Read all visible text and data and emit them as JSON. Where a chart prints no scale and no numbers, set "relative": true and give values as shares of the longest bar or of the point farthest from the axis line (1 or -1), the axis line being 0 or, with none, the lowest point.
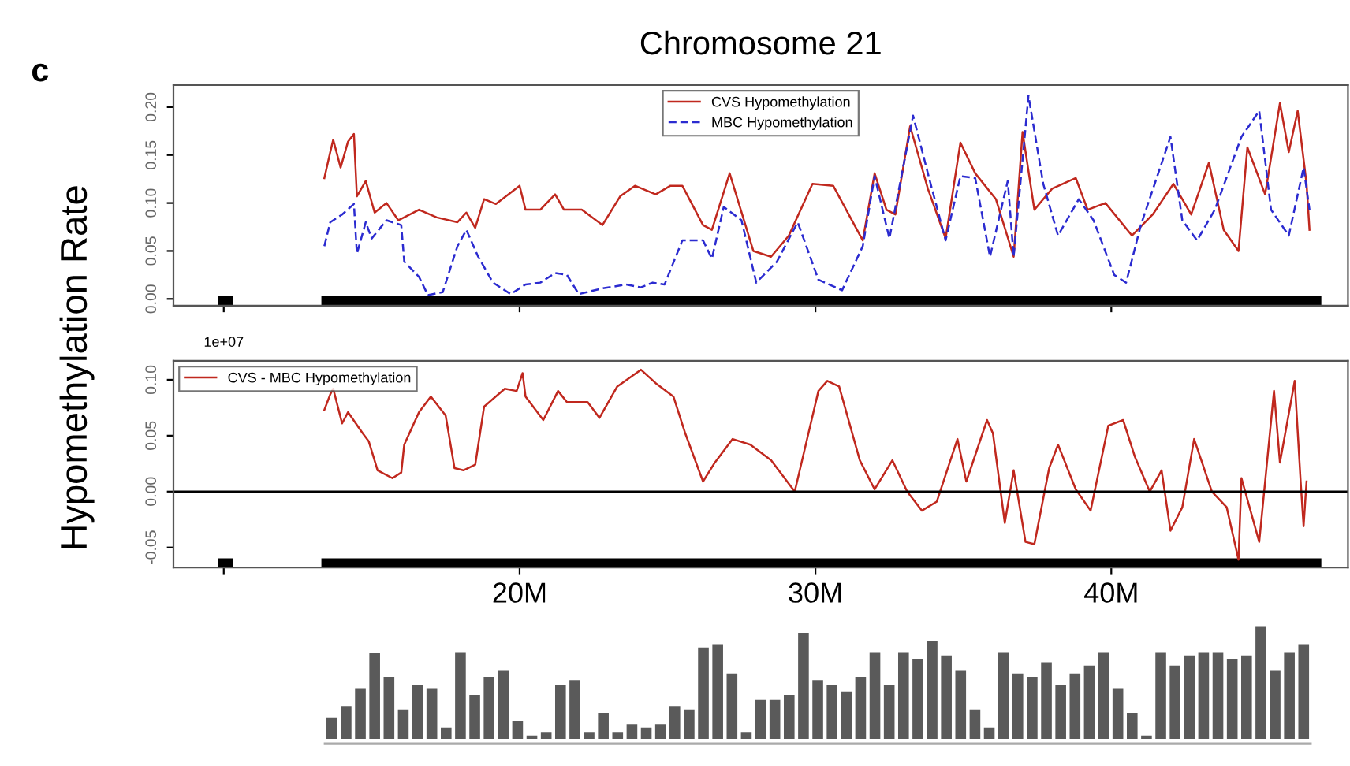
{
  "chart_data": [
    {
      "type": "line",
      "title": "Chromosome 21",
      "ylabel": "Hypomethylation Rate",
      "annotations": [
        "c",
        "1e+07"
      ],
      "tick_labels": "y",
      "xlim": [
        8300000.0,
        48000000.0
      ],
      "ylim": [
        -0.007,
        0.223
      ],
      "xticks": [
        {
          "value": 10000000.0,
          "label": null
        },
        {
          "value": 20000000.0,
          "label": null
        },
        {
          "value": 30000000.0,
          "label": null
        },
        {
          "value": 40000000.0,
          "label": null
        }
      ],
      "yticks": [
        {
          "value": 0,
          "label": "0.00"
        },
        {
          "value": 0.05,
          "label": "0.05"
        },
        {
          "value": 0.1,
          "label": "0.10"
        },
        {
          "value": 0.15,
          "label": "0.15"
        },
        {
          "value": 0.2,
          "label": "0.20"
        }
      ],
      "grid": false,
      "legend": "top center",
      "marker": "none",
      "bands": [
        {
          "axis": "x",
          "from": 9800000.0,
          "to": 10300000.0,
          "color": "#000000"
        },
        {
          "axis": "x",
          "from": 13300000.0,
          "to": 47100000.0,
          "color": "#000000"
        }
      ],
      "series": [
        {
          "name": "CVS Hypomethylation",
          "color": "#c0281e",
          "line_style": "solid",
          "x": [
            13400000.0,
            13600000.0,
            13700000.0,
            13950000.0,
            14200000.0,
            14400000.0,
            14500000.0,
            14800000.0,
            15100000.0,
            15500000.0,
            15900000.0,
            16600000.0,
            17200000.0,
            17900000.0,
            18200000.0,
            18500000.0,
            18800000.0,
            19200000.0,
            20000000.0,
            20200000.0,
            20700000.0,
            21200000.0,
            21500000.0,
            22100000.0,
            22800000.0,
            23400000.0,
            23900000.0,
            24600000.0,
            25100000.0,
            25500000.0,
            26200000.0,
            26500000.0,
            27100000.0,
            27900000.0,
            28500000.0,
            29100000.0,
            29900000.0,
            30600000.0,
            31600000.0,
            32000000.0,
            32400000.0,
            32700000.0,
            33200000.0,
            33800000.0,
            34400000.0,
            34900000.0,
            35400000.0,
            36100000.0,
            36700000.0,
            37000000.0,
            37400000.0,
            38000000.0,
            38800000.0,
            39200000.0,
            39800000.0,
            40700000.0,
            41400000.0,
            42100000.0,
            42700000.0,
            43300000.0,
            43800000.0,
            44300000.0,
            44600000.0,
            45200000.0,
            45700000.0,
            46000000.0,
            46300000.0,
            46600000.0,
            46700000.0
          ],
          "values": [
            0.126,
            0.153,
            0.166,
            0.137,
            0.164,
            0.172,
            0.107,
            0.123,
            0.09,
            0.1,
            0.082,
            0.093,
            0.085,
            0.08,
            0.09,
            0.074,
            0.104,
            0.099,
            0.118,
            0.093,
            0.093,
            0.109,
            0.093,
            0.093,
            0.077,
            0.107,
            0.118,
            0.109,
            0.118,
            0.118,
            0.077,
            0.072,
            0.131,
            0.05,
            0.044,
            0.066,
            0.12,
            0.118,
            0.061,
            0.131,
            0.093,
            0.088,
            0.18,
            0.115,
            0.063,
            0.163,
            0.131,
            0.104,
            0.044,
            0.174,
            0.093,
            0.115,
            0.126,
            0.093,
            0.1,
            0.066,
            0.088,
            0.12,
            0.088,
            0.142,
            0.072,
            0.05,
            0.158,
            0.109,
            0.204,
            0.153,
            0.196,
            0.12,
            0.072
          ]
        },
        {
          "name": "MBC Hypomethylation",
          "color": "#2b2bd0",
          "line_style": "dashed",
          "x": [
            13400000.0,
            13600000.0,
            14000000.0,
            14400000.0,
            14500000.0,
            14800000.0,
            15000000.0,
            15500000.0,
            16000000.0,
            16100000.0,
            16600000.0,
            16900000.0,
            17400000.0,
            17900000.0,
            18200000.0,
            18600000.0,
            19100000.0,
            19700000.0,
            20200000.0,
            20700000.0,
            21200000.0,
            21600000.0,
            22000000.0,
            22800000.0,
            23600000.0,
            24100000.0,
            24500000.0,
            24900000.0,
            25500000.0,
            26200000.0,
            26500000.0,
            26900000.0,
            27500000.0,
            28000000.0,
            28700000.0,
            29400000.0,
            30100000.0,
            30900000.0,
            31600000.0,
            32000000.0,
            32500000.0,
            33300000.0,
            33800000.0,
            34400000.0,
            34900000.0,
            35400000.0,
            35900000.0,
            36500000.0,
            36700000.0,
            37200000.0,
            37700000.0,
            38200000.0,
            38900000.0,
            39400000.0,
            40100000.0,
            40500000.0,
            41000000.0,
            42000000.0,
            42400000.0,
            42900000.0,
            43500000.0,
            44400000.0,
            45000000.0,
            45400000.0,
            46000000.0,
            46500000.0,
            46700000.0
          ],
          "values": [
            0.055,
            0.08,
            0.088,
            0.099,
            0.047,
            0.08,
            0.063,
            0.082,
            0.077,
            0.039,
            0.023,
            0.004,
            0.007,
            0.055,
            0.072,
            0.044,
            0.017,
            0.005,
            0.015,
            0.017,
            0.027,
            0.025,
            0.005,
            0.011,
            0.015,
            0.012,
            0.017,
            0.015,
            0.061,
            0.061,
            0.042,
            0.096,
            0.082,
            0.017,
            0.039,
            0.08,
            0.02,
            0.009,
            0.055,
            0.128,
            0.063,
            0.191,
            0.131,
            0.061,
            0.128,
            0.126,
            0.044,
            0.123,
            0.044,
            0.212,
            0.12,
            0.066,
            0.104,
            0.082,
            0.025,
            0.017,
            0.077,
            0.169,
            0.082,
            0.061,
            0.093,
            0.169,
            0.196,
            0.093,
            0.066,
            0.137,
            0.093
          ]
        }
      ]
    },
    {
      "type": "line",
      "xlim": [
        8300000.0,
        48000000.0
      ],
      "ylim": [
        -0.068,
        0.117
      ],
      "xticks": [
        {
          "value": 10000000.0,
          "label": null
        },
        {
          "value": 20000000.0,
          "label": "20M"
        },
        {
          "value": 30000000.0,
          "label": "30M"
        },
        {
          "value": 40000000.0,
          "label": "40M"
        }
      ],
      "yticks": [
        {
          "value": -0.05,
          "label": "-0.05"
        },
        {
          "value": 0,
          "label": "0.00"
        },
        {
          "value": 0.05,
          "label": "0.05"
        },
        {
          "value": 0.1,
          "label": "0.10"
        }
      ],
      "grid": false,
      "legend": "top left",
      "marker": "none",
      "ref_lines": [
        {
          "axis": "y",
          "value": 0,
          "color": "#000000"
        }
      ],
      "bands": [
        {
          "axis": "x",
          "from": 9800000.0,
          "to": 10300000.0,
          "color": "#000000"
        },
        {
          "axis": "x",
          "from": 13300000.0,
          "to": 47100000.0,
          "color": "#000000"
        }
      ],
      "series": [
        {
          "name": "CVS - MBC Hypomethylation",
          "color": "#c0281e",
          "line_style": "solid",
          "x": [
            13400000.0,
            13600000.0,
            13700000.0,
            14000000.0,
            14200000.0,
            14700000.0,
            14900000.0,
            15200000.0,
            15700000.0,
            16000000.0,
            16100000.0,
            16600000.0,
            17000000.0,
            17500000.0,
            17800000.0,
            18100000.0,
            18500000.0,
            18800000.0,
            19500000.0,
            19900000.0,
            20100000.0,
            20200000.0,
            20800000.0,
            21300000.0,
            21600000.0,
            22300000.0,
            22700000.0,
            23300000.0,
            24100000.0,
            24600000.0,
            25200000.0,
            25600000.0,
            26200000.0,
            26600000.0,
            27200000.0,
            27800000.0,
            28500000.0,
            29300000.0,
            30100000.0,
            30400000.0,
            30800000.0,
            31500000.0,
            32000000.0,
            32600000.0,
            33100000.0,
            33600000.0,
            34100000.0,
            34800000.0,
            35100000.0,
            35800000.0,
            36000000.0,
            36400000.0,
            36700000.0,
            37100000.0,
            37400000.0,
            37900000.0,
            38200000.0,
            38800000.0,
            39300000.0,
            39900000.0,
            40400000.0,
            40800000.0,
            41300000.0,
            41700000.0,
            42000000.0,
            42400000.0,
            42800000.0,
            43400000.0,
            43900000.0,
            44300000.0,
            44400000.0,
            45000000.0,
            45200000.0,
            45500000.0,
            45700000.0,
            46200000.0,
            46400000.0,
            46500000.0,
            46600000.0
          ],
          "values": [
            0.073,
            0.087,
            0.092,
            0.061,
            0.071,
            0.052,
            0.045,
            0.019,
            0.012,
            0.017,
            0.042,
            0.071,
            0.085,
            0.068,
            0.021,
            0.019,
            0.024,
            0.076,
            0.092,
            0.09,
            0.106,
            0.085,
            0.064,
            0.09,
            0.08,
            0.08,
            0.066,
            0.094,
            0.109,
            0.097,
            0.085,
            0.052,
            0.009,
            0.026,
            0.047,
            0.042,
            0.028,
            0.0,
            0.09,
            0.099,
            0.094,
            0.028,
            0.002,
            0.028,
            0.0,
            -0.017,
            -0.009,
            0.047,
            0.009,
            0.064,
            0.052,
            -0.028,
            0.019,
            -0.045,
            -0.047,
            0.021,
            0.042,
            0.002,
            -0.017,
            0.059,
            0.064,
            0.031,
            0.0,
            0.019,
            -0.035,
            -0.014,
            0.047,
            0.0,
            -0.014,
            -0.061,
            0.012,
            -0.045,
            0.009,
            0.09,
            0.026,
            0.099,
            0.009,
            -0.031,
            0.009
          ]
        }
      ]
    },
    {
      "type": "bar",
      "relative": true,
      "tick_labels": false,
      "color": "#5a5a5a",
      "categories": [
        null,
        null,
        null,
        null,
        null,
        null,
        null,
        null,
        null,
        null,
        null,
        null,
        null,
        null,
        null,
        null,
        null,
        null,
        null,
        null,
        null,
        null,
        null,
        null,
        null,
        null,
        null,
        null,
        null,
        null,
        null,
        null,
        null,
        null,
        null,
        null,
        null,
        null,
        null,
        null,
        null,
        null,
        null,
        null,
        null,
        null,
        null,
        null,
        null,
        null,
        null,
        null,
        null,
        null,
        null,
        null,
        null,
        null,
        null,
        null,
        null,
        null,
        null,
        null,
        null,
        null,
        null,
        null,
        null
      ],
      "values": [
        0.19,
        0.29,
        0.45,
        0.76,
        0.55,
        0.26,
        0.48,
        0.45,
        0.1,
        0.77,
        0.39,
        0.55,
        0.61,
        0.16,
        0.03,
        0.06,
        0.48,
        0.52,
        0.06,
        0.23,
        0.06,
        0.13,
        0.1,
        0.13,
        0.29,
        0.26,
        0.81,
        0.84,
        0.58,
        0.06,
        0.35,
        0.35,
        0.39,
        0.94,
        0.52,
        0.48,
        0.42,
        0.55,
        0.77,
        0.48,
        0.77,
        0.71,
        0.87,
        0.74,
        0.61,
        0.26,
        0.1,
        0.77,
        0.58,
        0.55,
        0.68,
        0.48,
        0.58,
        0.65,
        0.77,
        0.45,
        0.23,
        0.03,
        0.77,
        0.65,
        0.74,
        0.77,
        0.77,
        0.71,
        0.74,
        1,
        0.61,
        0.77,
        0.84
      ]
    }
  ]
}
